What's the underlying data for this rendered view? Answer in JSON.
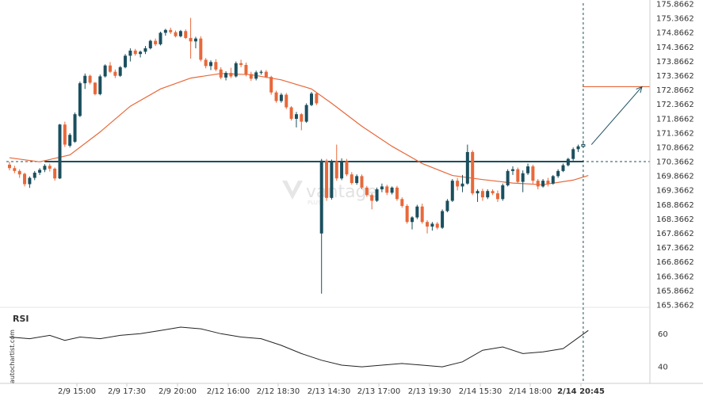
{
  "chart_data": {
    "type": "candlestick",
    "title": "",
    "side_label": "autochartist.com",
    "watermark": {
      "name": "vantage",
      "sub": "PLUS"
    },
    "x_ticks": [
      "2/9 15:00",
      "2/9 17:30",
      "2/9 20:00",
      "2/12 16:00",
      "2/12 18:30",
      "2/13 14:30",
      "2/13 17:00",
      "2/13 19:30",
      "2/14 15:30",
      "2/14 18:00",
      "2/14 20:45"
    ],
    "x_tick_bold_index": 10,
    "y_ticks": [
      175.8662,
      175.3662,
      174.8662,
      174.3662,
      173.8662,
      173.3662,
      172.8662,
      172.3662,
      171.8662,
      171.3662,
      170.8662,
      170.3662,
      169.8662,
      169.3662,
      168.8662,
      168.3662,
      167.8662,
      167.3662,
      166.8662,
      166.3662,
      165.8662,
      165.3662
    ],
    "ylim": [
      165.3662,
      175.8662
    ],
    "colors": {
      "up": "#1b4f5e",
      "down": "#e8683a",
      "ma": "#e8683a",
      "level": "#1b4f5e",
      "rsi": "#222222",
      "axis": "#cccccc"
    },
    "levels": [
      {
        "value": 170.3662,
        "from_index": 7
      }
    ],
    "projection": {
      "from_index": 115,
      "from_value": 170.96,
      "to_value": 172.98
    },
    "candles": [
      {
        "o": 170.26,
        "h": 170.36,
        "l": 170.06,
        "c": 170.14
      },
      {
        "o": 170.14,
        "h": 170.22,
        "l": 169.96,
        "c": 170.04
      },
      {
        "o": 170.04,
        "h": 170.1,
        "l": 169.8,
        "c": 169.92
      },
      {
        "o": 169.94,
        "h": 169.98,
        "l": 169.5,
        "c": 169.58
      },
      {
        "o": 169.58,
        "h": 169.85,
        "l": 169.45,
        "c": 169.8
      },
      {
        "o": 169.8,
        "h": 170.04,
        "l": 169.72,
        "c": 169.98
      },
      {
        "o": 169.98,
        "h": 170.14,
        "l": 169.9,
        "c": 170.08
      },
      {
        "o": 170.08,
        "h": 170.28,
        "l": 170.0,
        "c": 170.22
      },
      {
        "o": 170.22,
        "h": 170.3,
        "l": 170.02,
        "c": 170.12
      },
      {
        "o": 170.12,
        "h": 170.16,
        "l": 169.7,
        "c": 169.78
      },
      {
        "o": 169.78,
        "h": 171.68,
        "l": 169.76,
        "c": 171.66
      },
      {
        "o": 171.66,
        "h": 171.76,
        "l": 170.88,
        "c": 170.96
      },
      {
        "o": 170.92,
        "h": 171.36,
        "l": 170.86,
        "c": 171.3
      },
      {
        "o": 171.06,
        "h": 172.08,
        "l": 171.02,
        "c": 172.02
      },
      {
        "o": 171.96,
        "h": 173.16,
        "l": 171.92,
        "c": 173.1
      },
      {
        "o": 173.1,
        "h": 173.44,
        "l": 172.9,
        "c": 173.36
      },
      {
        "o": 173.36,
        "h": 173.4,
        "l": 173.06,
        "c": 173.12
      },
      {
        "o": 173.12,
        "h": 173.14,
        "l": 172.68,
        "c": 172.72
      },
      {
        "o": 172.72,
        "h": 173.4,
        "l": 172.68,
        "c": 173.34
      },
      {
        "o": 173.34,
        "h": 173.76,
        "l": 173.3,
        "c": 173.72
      },
      {
        "o": 173.72,
        "h": 173.84,
        "l": 173.46,
        "c": 173.5
      },
      {
        "o": 173.5,
        "h": 173.58,
        "l": 173.28,
        "c": 173.36
      },
      {
        "o": 173.36,
        "h": 173.7,
        "l": 173.32,
        "c": 173.66
      },
      {
        "o": 173.66,
        "h": 174.12,
        "l": 173.62,
        "c": 174.06
      },
      {
        "o": 174.06,
        "h": 174.32,
        "l": 173.86,
        "c": 174.24
      },
      {
        "o": 174.24,
        "h": 174.3,
        "l": 174.06,
        "c": 174.12
      },
      {
        "o": 174.12,
        "h": 174.24,
        "l": 174.0,
        "c": 174.2
      },
      {
        "o": 174.2,
        "h": 174.4,
        "l": 174.12,
        "c": 174.32
      },
      {
        "o": 174.32,
        "h": 174.62,
        "l": 174.28,
        "c": 174.58
      },
      {
        "o": 174.58,
        "h": 174.66,
        "l": 174.4,
        "c": 174.46
      },
      {
        "o": 174.46,
        "h": 174.9,
        "l": 174.42,
        "c": 174.86
      },
      {
        "o": 174.86,
        "h": 175.0,
        "l": 174.76,
        "c": 174.96
      },
      {
        "o": 174.96,
        "h": 175.04,
        "l": 174.82,
        "c": 174.88
      },
      {
        "o": 174.88,
        "h": 174.94,
        "l": 174.7,
        "c": 174.74
      },
      {
        "o": 174.74,
        "h": 174.96,
        "l": 174.7,
        "c": 174.92
      },
      {
        "o": 174.92,
        "h": 174.98,
        "l": 174.64,
        "c": 174.68
      },
      {
        "o": 174.68,
        "h": 175.38,
        "l": 173.96,
        "c": 174.56
      },
      {
        "o": 174.56,
        "h": 174.72,
        "l": 174.32,
        "c": 174.66
      },
      {
        "o": 174.66,
        "h": 174.74,
        "l": 173.86,
        "c": 173.92
      },
      {
        "o": 173.92,
        "h": 173.98,
        "l": 173.62,
        "c": 173.7
      },
      {
        "o": 173.7,
        "h": 173.9,
        "l": 173.56,
        "c": 173.84
      },
      {
        "o": 173.84,
        "h": 173.94,
        "l": 173.52,
        "c": 173.58
      },
      {
        "o": 173.58,
        "h": 173.66,
        "l": 173.24,
        "c": 173.3
      },
      {
        "o": 173.3,
        "h": 173.52,
        "l": 173.2,
        "c": 173.46
      },
      {
        "o": 173.46,
        "h": 173.64,
        "l": 173.28,
        "c": 173.34
      },
      {
        "o": 173.34,
        "h": 173.86,
        "l": 173.3,
        "c": 173.8
      },
      {
        "o": 173.8,
        "h": 173.92,
        "l": 173.66,
        "c": 173.74
      },
      {
        "o": 173.74,
        "h": 173.82,
        "l": 173.34,
        "c": 173.42
      },
      {
        "o": 173.42,
        "h": 173.5,
        "l": 173.18,
        "c": 173.26
      },
      {
        "o": 173.26,
        "h": 173.54,
        "l": 173.2,
        "c": 173.48
      },
      {
        "o": 173.48,
        "h": 173.56,
        "l": 173.4,
        "c": 173.5
      },
      {
        "o": 173.5,
        "h": 173.56,
        "l": 173.28,
        "c": 173.32
      },
      {
        "o": 173.32,
        "h": 173.36,
        "l": 172.7,
        "c": 172.78
      },
      {
        "o": 172.78,
        "h": 172.84,
        "l": 172.42,
        "c": 172.48
      },
      {
        "o": 172.48,
        "h": 172.76,
        "l": 172.42,
        "c": 172.7
      },
      {
        "o": 172.7,
        "h": 172.76,
        "l": 172.2,
        "c": 172.26
      },
      {
        "o": 172.26,
        "h": 172.3,
        "l": 171.8,
        "c": 171.86
      },
      {
        "o": 171.86,
        "h": 172.1,
        "l": 171.56,
        "c": 172.02
      },
      {
        "o": 172.02,
        "h": 172.06,
        "l": 171.46,
        "c": 171.76
      },
      {
        "o": 171.76,
        "h": 172.4,
        "l": 171.72,
        "c": 172.34
      },
      {
        "o": 172.34,
        "h": 172.8,
        "l": 172.3,
        "c": 172.74
      },
      {
        "o": 172.74,
        "h": 172.78,
        "l": 172.34,
        "c": 172.4
      },
      {
        "o": 167.86,
        "h": 170.46,
        "l": 165.76,
        "c": 170.4
      },
      {
        "o": 170.4,
        "h": 170.46,
        "l": 169.0,
        "c": 169.1
      },
      {
        "o": 169.1,
        "h": 170.44,
        "l": 169.04,
        "c": 170.38
      },
      {
        "o": 170.38,
        "h": 170.96,
        "l": 169.7,
        "c": 169.78
      },
      {
        "o": 169.78,
        "h": 170.48,
        "l": 169.72,
        "c": 170.38
      },
      {
        "o": 170.38,
        "h": 170.46,
        "l": 169.86,
        "c": 169.92
      },
      {
        "o": 169.92,
        "h": 170.0,
        "l": 169.56,
        "c": 169.62
      },
      {
        "o": 169.62,
        "h": 169.92,
        "l": 169.56,
        "c": 169.86
      },
      {
        "o": 169.86,
        "h": 169.92,
        "l": 169.4,
        "c": 169.46
      },
      {
        "o": 169.46,
        "h": 169.52,
        "l": 169.14,
        "c": 169.2
      },
      {
        "o": 169.2,
        "h": 169.26,
        "l": 168.7,
        "c": 169.0
      },
      {
        "o": 169.0,
        "h": 169.46,
        "l": 168.96,
        "c": 169.4
      },
      {
        "o": 169.4,
        "h": 169.6,
        "l": 169.3,
        "c": 169.5
      },
      {
        "o": 169.5,
        "h": 169.56,
        "l": 169.2,
        "c": 169.28
      },
      {
        "o": 169.28,
        "h": 169.5,
        "l": 169.22,
        "c": 169.46
      },
      {
        "o": 169.46,
        "h": 169.52,
        "l": 169.0,
        "c": 169.06
      },
      {
        "o": 169.06,
        "h": 169.12,
        "l": 168.76,
        "c": 168.82
      },
      {
        "o": 168.82,
        "h": 168.88,
        "l": 168.2,
        "c": 168.26
      },
      {
        "o": 168.26,
        "h": 168.46,
        "l": 168.0,
        "c": 168.42
      },
      {
        "o": 168.42,
        "h": 168.86,
        "l": 168.36,
        "c": 168.8
      },
      {
        "o": 168.8,
        "h": 168.9,
        "l": 168.2,
        "c": 168.26
      },
      {
        "o": 168.26,
        "h": 168.32,
        "l": 167.86,
        "c": 168.1
      },
      {
        "o": 168.1,
        "h": 168.26,
        "l": 167.96,
        "c": 168.2
      },
      {
        "o": 168.2,
        "h": 168.26,
        "l": 168.0,
        "c": 168.06
      },
      {
        "o": 168.06,
        "h": 168.7,
        "l": 168.02,
        "c": 168.64
      },
      {
        "o": 168.64,
        "h": 169.06,
        "l": 168.6,
        "c": 169.0
      },
      {
        "o": 169.0,
        "h": 169.76,
        "l": 168.96,
        "c": 169.7
      },
      {
        "o": 169.7,
        "h": 169.8,
        "l": 169.36,
        "c": 169.5
      },
      {
        "o": 169.5,
        "h": 169.9,
        "l": 169.3,
        "c": 169.6
      },
      {
        "o": 169.6,
        "h": 170.96,
        "l": 169.56,
        "c": 170.7
      },
      {
        "o": 170.7,
        "h": 170.76,
        "l": 169.2,
        "c": 169.26
      },
      {
        "o": 169.26,
        "h": 169.4,
        "l": 168.96,
        "c": 169.34
      },
      {
        "o": 169.34,
        "h": 169.42,
        "l": 169.0,
        "c": 169.12
      },
      {
        "o": 169.12,
        "h": 169.4,
        "l": 169.06,
        "c": 169.34
      },
      {
        "o": 169.34,
        "h": 169.4,
        "l": 169.2,
        "c": 169.26
      },
      {
        "o": 169.26,
        "h": 169.36,
        "l": 168.96,
        "c": 169.06
      },
      {
        "o": 169.06,
        "h": 169.6,
        "l": 169.0,
        "c": 169.54
      },
      {
        "o": 169.54,
        "h": 170.1,
        "l": 169.5,
        "c": 170.04
      },
      {
        "o": 170.04,
        "h": 170.2,
        "l": 169.9,
        "c": 170.1
      },
      {
        "o": 170.1,
        "h": 170.16,
        "l": 169.6,
        "c": 169.66
      },
      {
        "o": 169.66,
        "h": 170.06,
        "l": 169.3,
        "c": 169.96
      },
      {
        "o": 169.96,
        "h": 170.3,
        "l": 169.9,
        "c": 170.2
      },
      {
        "o": 170.2,
        "h": 170.26,
        "l": 169.6,
        "c": 169.7
      },
      {
        "o": 169.7,
        "h": 169.76,
        "l": 169.4,
        "c": 169.5
      },
      {
        "o": 169.5,
        "h": 169.76,
        "l": 169.46,
        "c": 169.7
      },
      {
        "o": 169.7,
        "h": 169.8,
        "l": 169.5,
        "c": 169.6
      },
      {
        "o": 169.6,
        "h": 169.9,
        "l": 169.56,
        "c": 169.86
      },
      {
        "o": 169.86,
        "h": 170.1,
        "l": 169.8,
        "c": 170.04
      },
      {
        "o": 170.04,
        "h": 170.3,
        "l": 170.0,
        "c": 170.24
      },
      {
        "o": 170.24,
        "h": 170.5,
        "l": 170.2,
        "c": 170.46
      },
      {
        "o": 170.46,
        "h": 170.86,
        "l": 170.4,
        "c": 170.8
      },
      {
        "o": 170.8,
        "h": 170.96,
        "l": 170.7,
        "c": 170.9
      },
      {
        "o": 170.9,
        "h": 171.1,
        "l": 170.84,
        "c": 170.96
      }
    ],
    "moving_average": [
      {
        "i": 0,
        "v": 170.5
      },
      {
        "i": 6,
        "v": 170.36
      },
      {
        "i": 12,
        "v": 170.6
      },
      {
        "i": 18,
        "v": 171.4
      },
      {
        "i": 24,
        "v": 172.3
      },
      {
        "i": 30,
        "v": 172.9
      },
      {
        "i": 36,
        "v": 173.28
      },
      {
        "i": 42,
        "v": 173.44
      },
      {
        "i": 48,
        "v": 173.4
      },
      {
        "i": 54,
        "v": 173.22
      },
      {
        "i": 60,
        "v": 172.9
      },
      {
        "i": 64,
        "v": 172.4
      },
      {
        "i": 70,
        "v": 171.6
      },
      {
        "i": 76,
        "v": 170.9
      },
      {
        "i": 82,
        "v": 170.3
      },
      {
        "i": 88,
        "v": 169.88
      },
      {
        "i": 94,
        "v": 169.74
      },
      {
        "i": 100,
        "v": 169.62
      },
      {
        "i": 106,
        "v": 169.56
      },
      {
        "i": 112,
        "v": 169.72
      },
      {
        "i": 115,
        "v": 169.88
      }
    ],
    "rsi": {
      "label": "RSI",
      "y_ticks": [
        60,
        40
      ],
      "ylim": [
        30,
        75
      ],
      "values": [
        {
          "i": 0,
          "v": 58
        },
        {
          "i": 4,
          "v": 57
        },
        {
          "i": 8,
          "v": 59
        },
        {
          "i": 11,
          "v": 56
        },
        {
          "i": 14,
          "v": 58
        },
        {
          "i": 18,
          "v": 57
        },
        {
          "i": 22,
          "v": 59
        },
        {
          "i": 26,
          "v": 60
        },
        {
          "i": 30,
          "v": 62
        },
        {
          "i": 34,
          "v": 64
        },
        {
          "i": 38,
          "v": 63
        },
        {
          "i": 42,
          "v": 60
        },
        {
          "i": 46,
          "v": 58
        },
        {
          "i": 50,
          "v": 57
        },
        {
          "i": 54,
          "v": 53
        },
        {
          "i": 58,
          "v": 48
        },
        {
          "i": 62,
          "v": 44
        },
        {
          "i": 66,
          "v": 41
        },
        {
          "i": 70,
          "v": 40
        },
        {
          "i": 74,
          "v": 41
        },
        {
          "i": 78,
          "v": 42
        },
        {
          "i": 82,
          "v": 41
        },
        {
          "i": 86,
          "v": 40
        },
        {
          "i": 90,
          "v": 43
        },
        {
          "i": 94,
          "v": 50
        },
        {
          "i": 98,
          "v": 52
        },
        {
          "i": 102,
          "v": 48
        },
        {
          "i": 106,
          "v": 49
        },
        {
          "i": 110,
          "v": 51
        },
        {
          "i": 115,
          "v": 62
        }
      ]
    }
  }
}
